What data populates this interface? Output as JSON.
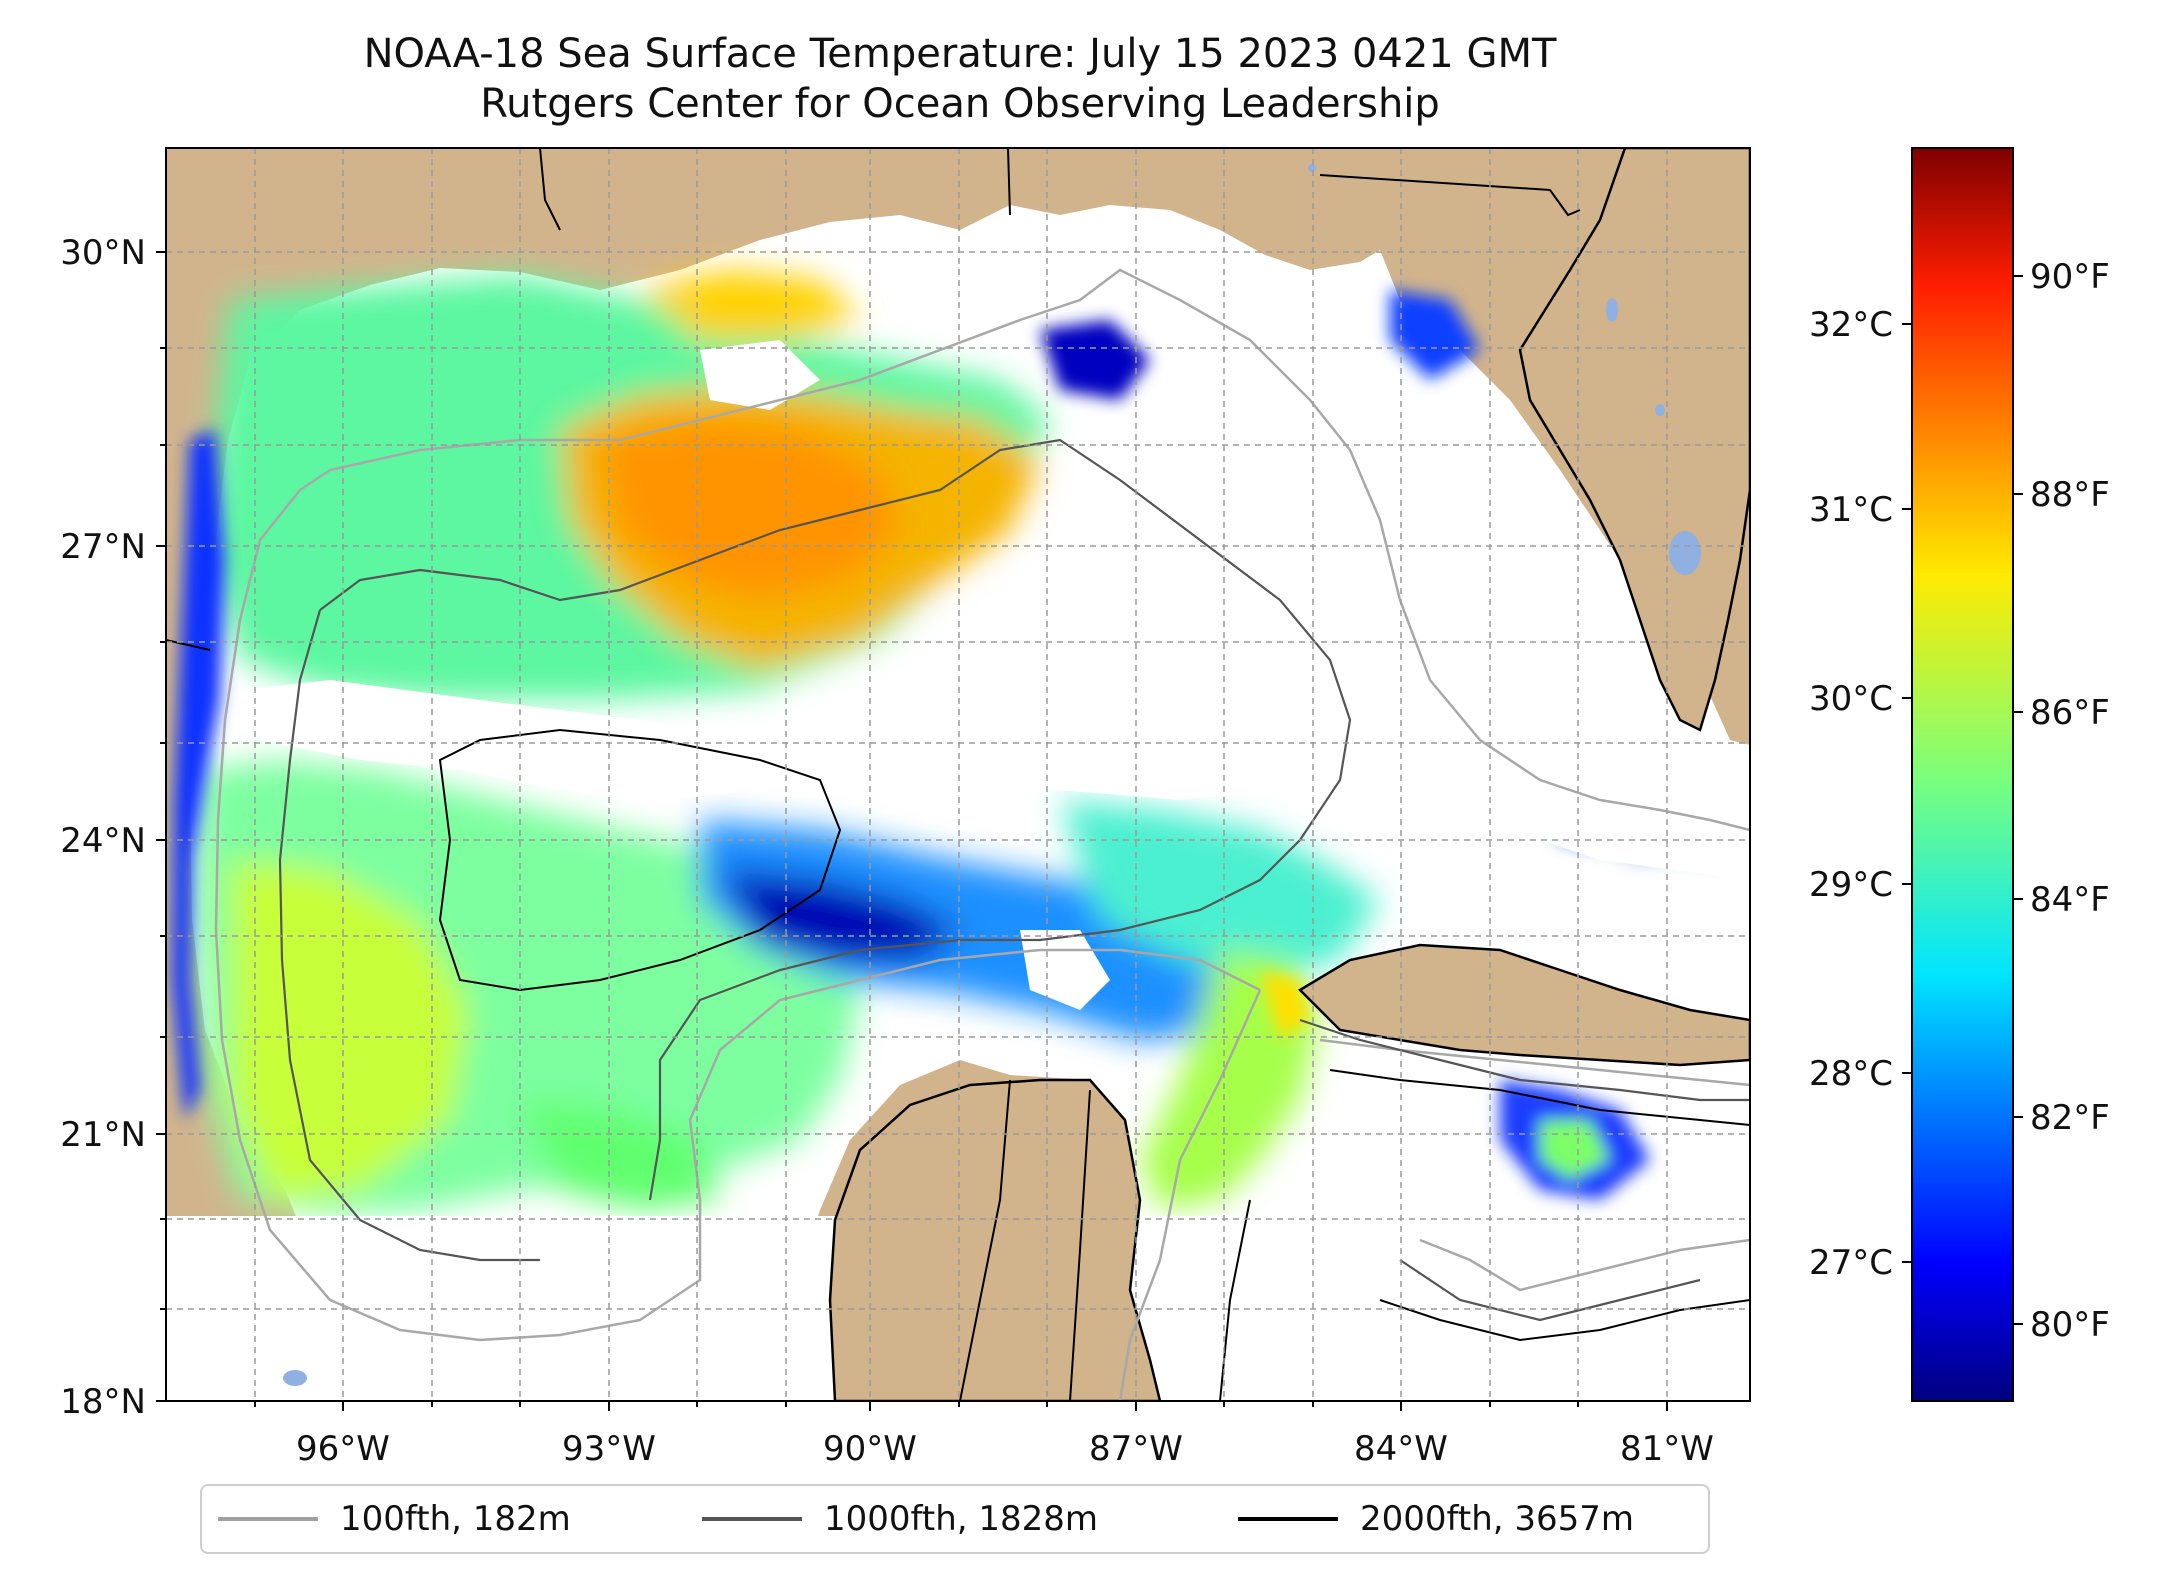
{
  "title": {
    "line1": "NOAA-18 Sea Surface Temperature: July 15 2023 0421 GMT",
    "line2": "Rutgers Center for Ocean Observing Leadership"
  },
  "map": {
    "lat_labels": [
      "30°N",
      "27°N",
      "24°N",
      "21°N",
      "18°N"
    ],
    "lon_labels": [
      "96°W",
      "93°W",
      "90°W",
      "87°W",
      "84°W",
      "81°W"
    ],
    "land_color": "#d2b48c",
    "nodata_color": "#ffffff",
    "grid": true,
    "extent": {
      "lon": [
        -98.3,
        -80.7
      ],
      "lat": [
        18.0,
        31.0
      ]
    }
  },
  "colorbar": {
    "celsius_labels": [
      "32°C",
      "31°C",
      "30°C",
      "29°C",
      "28°C",
      "27°C"
    ],
    "fahrenheit_labels": [
      "90°F",
      "88°F",
      "86°F",
      "84°F",
      "82°F",
      "80°F"
    ],
    "colormap": "jet"
  },
  "legend": {
    "placement": "bottom",
    "items": [
      {
        "label": "100fth, 182m",
        "color": "#a0a0a0"
      },
      {
        "label": "1000fth, 1828m",
        "color": "#555555"
      },
      {
        "label": "2000fth, 3657m",
        "color": "#000000"
      }
    ]
  }
}
